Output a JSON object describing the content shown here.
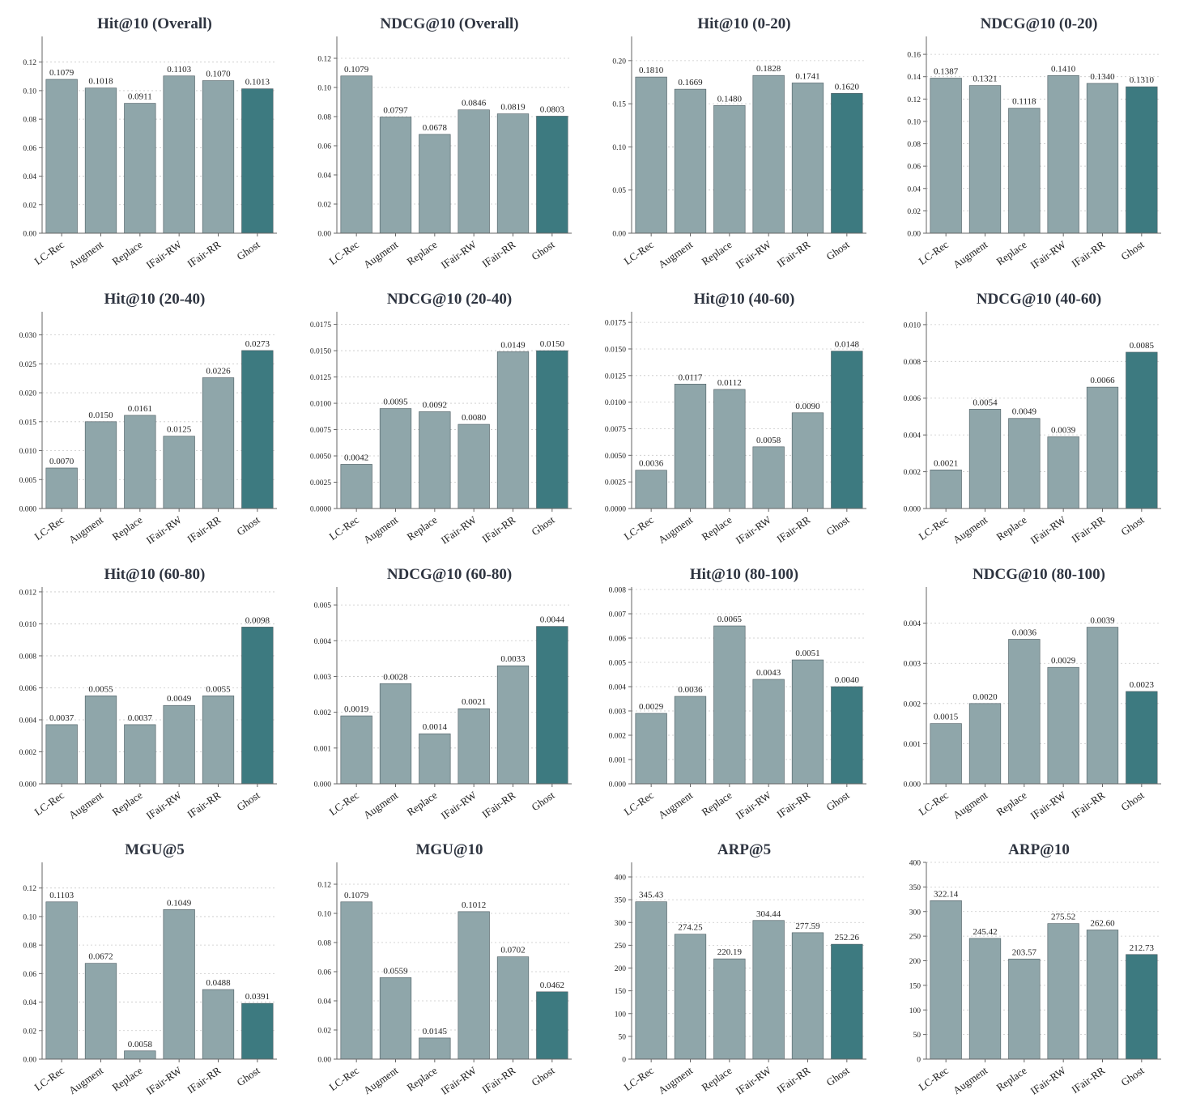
{
  "colors": {
    "bar": "#8fa6aa",
    "highlight": "#3d7a80"
  },
  "highlight_category": "Ghost",
  "chart_data": [
    {
      "type": "bar",
      "title": "Hit@10 (Overall)",
      "categories": [
        "LC-Rec",
        "Augment",
        "Replace",
        "IFair-RW",
        "IFair-RR",
        "Ghost"
      ],
      "values": [
        0.1079,
        0.1018,
        0.0911,
        0.1103,
        0.107,
        0.1013
      ],
      "labels": [
        "0.1079",
        "0.1018",
        "0.0911",
        "0.1103",
        "0.1070",
        "0.1013"
      ],
      "ylim": [
        0,
        0.138
      ],
      "yticks": [
        "0.00",
        "0.02",
        "0.04",
        "0.06",
        "0.08",
        "0.10",
        "0.12"
      ],
      "ytick_values": [
        0,
        0.02,
        0.04,
        0.06,
        0.08,
        0.1,
        0.12
      ]
    },
    {
      "type": "bar",
      "title": "NDCG@10 (Overall)",
      "categories": [
        "LC-Rec",
        "Augment",
        "Replace",
        "IFair-RW",
        "IFair-RR",
        "Ghost"
      ],
      "values": [
        0.1079,
        0.0797,
        0.0678,
        0.0846,
        0.0819,
        0.0803
      ],
      "labels": [
        "0.1079",
        "0.0797",
        "0.0678",
        "0.0846",
        "0.0819",
        "0.0803"
      ],
      "ylim": [
        0,
        0.135
      ],
      "yticks": [
        "0.00",
        "0.02",
        "0.04",
        "0.06",
        "0.08",
        "0.10",
        "0.12"
      ],
      "ytick_values": [
        0,
        0.02,
        0.04,
        0.06,
        0.08,
        0.1,
        0.12
      ]
    },
    {
      "type": "bar",
      "title": "Hit@10 (0-20)",
      "categories": [
        "LC-Rec",
        "Augment",
        "Replace",
        "IFair-RW",
        "IFair-RR",
        "Ghost"
      ],
      "values": [
        0.181,
        0.1669,
        0.148,
        0.1828,
        0.1741,
        0.162
      ],
      "labels": [
        "0.1810",
        "0.1669",
        "0.1480",
        "0.1828",
        "0.1741",
        "0.1620"
      ],
      "ylim": [
        0,
        0.228
      ],
      "yticks": [
        "0.00",
        "0.05",
        "0.10",
        "0.15",
        "0.20"
      ],
      "ytick_values": [
        0,
        0.05,
        0.1,
        0.15,
        0.2
      ]
    },
    {
      "type": "bar",
      "title": "NDCG@10 (0-20)",
      "categories": [
        "LC-Rec",
        "Augment",
        "Replace",
        "IFair-RW",
        "IFair-RR",
        "Ghost"
      ],
      "values": [
        0.1387,
        0.1321,
        0.1118,
        0.141,
        0.134,
        0.131
      ],
      "labels": [
        "0.1387",
        "0.1321",
        "0.1118",
        "0.1410",
        "0.1340",
        "0.1310"
      ],
      "ylim": [
        0,
        0.176
      ],
      "yticks": [
        "0.00",
        "0.02",
        "0.04",
        "0.06",
        "0.08",
        "0.10",
        "0.12",
        "0.14",
        "0.16"
      ],
      "ytick_values": [
        0,
        0.02,
        0.04,
        0.06,
        0.08,
        0.1,
        0.12,
        0.14,
        0.16
      ]
    },
    {
      "type": "bar",
      "title": "Hit@10 (20-40)",
      "categories": [
        "LC-Rec",
        "Augment",
        "Replace",
        "IFair-RW",
        "IFair-RR",
        "Ghost"
      ],
      "values": [
        0.007,
        0.015,
        0.0161,
        0.0125,
        0.0226,
        0.0273
      ],
      "labels": [
        "0.0070",
        "0.0150",
        "0.0161",
        "0.0125",
        "0.0226",
        "0.0273"
      ],
      "ylim": [
        0,
        0.034
      ],
      "yticks": [
        "0.000",
        "0.005",
        "0.010",
        "0.015",
        "0.020",
        "0.025",
        "0.030"
      ],
      "ytick_values": [
        0,
        0.005,
        0.01,
        0.015,
        0.02,
        0.025,
        0.03
      ]
    },
    {
      "type": "bar",
      "title": "NDCG@10 (20-40)",
      "categories": [
        "LC-Rec",
        "Augment",
        "Replace",
        "IFair-RW",
        "IFair-RR",
        "Ghost"
      ],
      "values": [
        0.0042,
        0.0095,
        0.0092,
        0.008,
        0.0149,
        0.015
      ],
      "labels": [
        "0.0042",
        "0.0095",
        "0.0092",
        "0.0080",
        "0.0149",
        "0.0150"
      ],
      "ylim": [
        0,
        0.0187
      ],
      "yticks": [
        "0.0000",
        "0.0025",
        "0.0050",
        "0.0075",
        "0.0100",
        "0.0125",
        "0.0150",
        "0.0175"
      ],
      "ytick_values": [
        0,
        0.0025,
        0.005,
        0.0075,
        0.01,
        0.0125,
        0.015,
        0.0175
      ]
    },
    {
      "type": "bar",
      "title": "Hit@10 (40-60)",
      "categories": [
        "LC-Rec",
        "Augment",
        "Replace",
        "IFair-RW",
        "IFair-RR",
        "Ghost"
      ],
      "values": [
        0.0036,
        0.0117,
        0.0112,
        0.0058,
        0.009,
        0.0148
      ],
      "labels": [
        "0.0036",
        "0.0117",
        "0.0112",
        "0.0058",
        "0.0090",
        "0.0148"
      ],
      "ylim": [
        0,
        0.0185
      ],
      "yticks": [
        "0.0000",
        "0.0025",
        "0.0050",
        "0.0075",
        "0.0100",
        "0.0125",
        "0.0150",
        "0.0175"
      ],
      "ytick_values": [
        0,
        0.0025,
        0.005,
        0.0075,
        0.01,
        0.0125,
        0.015,
        0.0175
      ]
    },
    {
      "type": "bar",
      "title": "NDCG@10 (40-60)",
      "categories": [
        "LC-Rec",
        "Augment",
        "Replace",
        "IFair-RW",
        "IFair-RR",
        "Ghost"
      ],
      "values": [
        0.0021,
        0.0054,
        0.0049,
        0.0039,
        0.0066,
        0.0085
      ],
      "labels": [
        "0.0021",
        "0.0054",
        "0.0049",
        "0.0039",
        "0.0066",
        "0.0085"
      ],
      "ylim": [
        0,
        0.0107
      ],
      "yticks": [
        "0.000",
        "0.002",
        "0.004",
        "0.006",
        "0.008",
        "0.010"
      ],
      "ytick_values": [
        0,
        0.002,
        0.004,
        0.006,
        0.008,
        0.01
      ]
    },
    {
      "type": "bar",
      "title": "Hit@10 (60-80)",
      "categories": [
        "LC-Rec",
        "Augment",
        "Replace",
        "IFair-RW",
        "IFair-RR",
        "Ghost"
      ],
      "values": [
        0.0037,
        0.0055,
        0.0037,
        0.0049,
        0.0055,
        0.0098
      ],
      "labels": [
        "0.0037",
        "0.0055",
        "0.0037",
        "0.0049",
        "0.0055",
        "0.0098"
      ],
      "ylim": [
        0,
        0.0123
      ],
      "yticks": [
        "0.000",
        "0.002",
        "0.004",
        "0.006",
        "0.008",
        "0.010",
        "0.012"
      ],
      "ytick_values": [
        0,
        0.002,
        0.004,
        0.006,
        0.008,
        0.01,
        0.012
      ]
    },
    {
      "type": "bar",
      "title": "NDCG@10 (60-80)",
      "categories": [
        "LC-Rec",
        "Augment",
        "Replace",
        "IFair-RW",
        "IFair-RR",
        "Ghost"
      ],
      "values": [
        0.0019,
        0.0028,
        0.0014,
        0.0021,
        0.0033,
        0.0044
      ],
      "labels": [
        "0.0019",
        "0.0028",
        "0.0014",
        "0.0021",
        "0.0033",
        "0.0044"
      ],
      "ylim": [
        0,
        0.0055
      ],
      "yticks": [
        "0.000",
        "0.001",
        "0.002",
        "0.003",
        "0.004",
        "0.005"
      ],
      "ytick_values": [
        0,
        0.001,
        0.002,
        0.003,
        0.004,
        0.005
      ]
    },
    {
      "type": "bar",
      "title": "Hit@10 (80-100)",
      "categories": [
        "LC-Rec",
        "Augment",
        "Replace",
        "IFair-RW",
        "IFair-RR",
        "Ghost"
      ],
      "values": [
        0.0029,
        0.0036,
        0.0065,
        0.0043,
        0.0051,
        0.004
      ],
      "labels": [
        "0.0029",
        "0.0036",
        "0.0065",
        "0.0043",
        "0.0051",
        "0.0040"
      ],
      "ylim": [
        0,
        0.0081
      ],
      "yticks": [
        "0.000",
        "0.001",
        "0.002",
        "0.003",
        "0.004",
        "0.005",
        "0.006",
        "0.007",
        "0.008"
      ],
      "ytick_values": [
        0,
        0.001,
        0.002,
        0.003,
        0.004,
        0.005,
        0.006,
        0.007,
        0.008
      ]
    },
    {
      "type": "bar",
      "title": "NDCG@10 (80-100)",
      "categories": [
        "LC-Rec",
        "Augment",
        "Replace",
        "IFair-RW",
        "IFair-RR",
        "Ghost"
      ],
      "values": [
        0.0015,
        0.002,
        0.0036,
        0.0029,
        0.0039,
        0.0023
      ],
      "labels": [
        "0.0015",
        "0.0020",
        "0.0036",
        "0.0029",
        "0.0039",
        "0.0023"
      ],
      "ylim": [
        0,
        0.0049
      ],
      "yticks": [
        "0.000",
        "0.001",
        "0.002",
        "0.003",
        "0.004"
      ],
      "ytick_values": [
        0,
        0.001,
        0.002,
        0.003,
        0.004
      ]
    },
    {
      "type": "bar",
      "title": "MGU@5",
      "categories": [
        "LC-Rec",
        "Augment",
        "Replace",
        "IFair-RW",
        "IFair-RR",
        "Ghost"
      ],
      "values": [
        0.1103,
        0.0672,
        0.0058,
        0.1049,
        0.0488,
        0.0391
      ],
      "labels": [
        "0.1103",
        "0.0672",
        "0.0058",
        "0.1049",
        "0.0488",
        "0.0391"
      ],
      "ylim": [
        0,
        0.138
      ],
      "yticks": [
        "0.00",
        "0.02",
        "0.04",
        "0.06",
        "0.08",
        "0.10",
        "0.12"
      ],
      "ytick_values": [
        0,
        0.02,
        0.04,
        0.06,
        0.08,
        0.1,
        0.12
      ]
    },
    {
      "type": "bar",
      "title": "MGU@10",
      "categories": [
        "LC-Rec",
        "Augment",
        "Replace",
        "IFair-RW",
        "IFair-RR",
        "Ghost"
      ],
      "values": [
        0.1079,
        0.0559,
        0.0145,
        0.1012,
        0.0702,
        0.0462
      ],
      "labels": [
        "0.1079",
        "0.0559",
        "0.0145",
        "0.1012",
        "0.0702",
        "0.0462"
      ],
      "ylim": [
        0,
        0.135
      ],
      "yticks": [
        "0.00",
        "0.02",
        "0.04",
        "0.06",
        "0.08",
        "0.10",
        "0.12"
      ],
      "ytick_values": [
        0,
        0.02,
        0.04,
        0.06,
        0.08,
        0.1,
        0.12
      ]
    },
    {
      "type": "bar",
      "title": "ARP@5",
      "categories": [
        "LC-Rec",
        "Augment",
        "Replace",
        "IFair-RW",
        "IFair-RR",
        "Ghost"
      ],
      "values": [
        345.43,
        274.25,
        220.19,
        304.44,
        277.59,
        252.26
      ],
      "labels": [
        "345.43",
        "274.25",
        "220.19",
        "304.44",
        "277.59",
        "252.26"
      ],
      "ylim": [
        0,
        432
      ],
      "yticks": [
        "0",
        "50",
        "100",
        "150",
        "200",
        "250",
        "300",
        "350",
        "400"
      ],
      "ytick_values": [
        0,
        50,
        100,
        150,
        200,
        250,
        300,
        350,
        400
      ]
    },
    {
      "type": "bar",
      "title": "ARP@10",
      "categories": [
        "LC-Rec",
        "Augment",
        "Replace",
        "IFair-RW",
        "IFair-RR",
        "Ghost"
      ],
      "values": [
        322.14,
        245.42,
        203.57,
        275.52,
        262.6,
        212.73
      ],
      "labels": [
        "322.14",
        "245.42",
        "203.57",
        "275.52",
        "262.60",
        "212.73"
      ],
      "ylim": [
        0,
        400
      ],
      "yticks": [
        "0",
        "50",
        "100",
        "150",
        "200",
        "250",
        "300",
        "350",
        "400"
      ],
      "ytick_values": [
        0,
        50,
        100,
        150,
        200,
        250,
        300,
        350,
        400
      ]
    }
  ]
}
